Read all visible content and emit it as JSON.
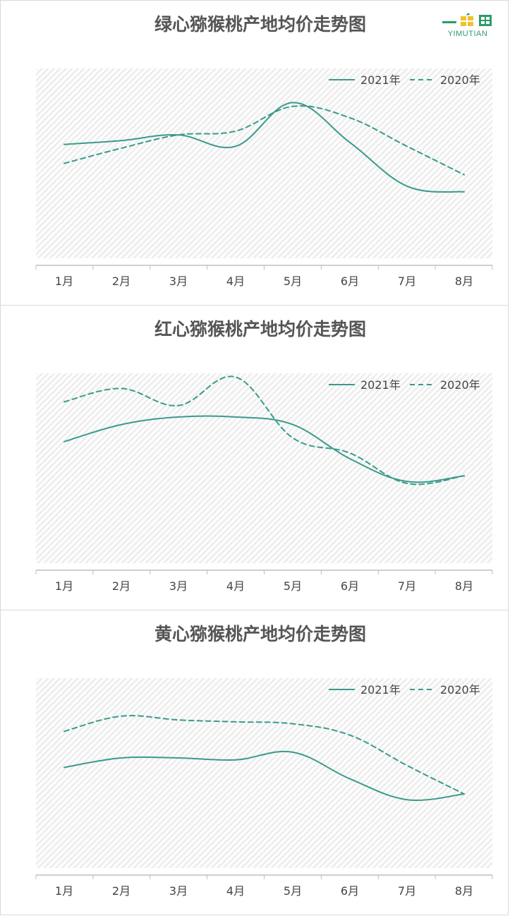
{
  "logo": {
    "text": "YIMUTIAN",
    "colors": {
      "green": "#2e9b6a",
      "yellow": "#f2c12e"
    }
  },
  "colors": {
    "line": "#3a9a8c",
    "axis": "#bfbfbf",
    "hatch": "#eeeeee",
    "title": "#555555",
    "tick": "#444444"
  },
  "chart_data": [
    {
      "type": "line",
      "title": "绿心猕猴桃产地均价走势图",
      "categories": [
        "1月",
        "2月",
        "3月",
        "4月",
        "5月",
        "6月",
        "7月",
        "8月"
      ],
      "ylim": [
        0,
        10
      ],
      "legend": "top-right",
      "series": [
        {
          "name": "2021年",
          "style": "solid",
          "values": [
            6.0,
            6.2,
            6.5,
            5.9,
            8.2,
            6.1,
            3.8,
            3.5
          ]
        },
        {
          "name": "2020年",
          "style": "dashed",
          "values": [
            5.0,
            5.8,
            6.5,
            6.7,
            8.0,
            7.4,
            5.9,
            4.4
          ]
        }
      ]
    },
    {
      "type": "line",
      "title": "红心猕猴桃产地均价走势图",
      "categories": [
        "1月",
        "2月",
        "3月",
        "4月",
        "5月",
        "6月",
        "7月",
        "8月"
      ],
      "ylim": [
        0,
        10
      ],
      "legend": "top-right",
      "series": [
        {
          "name": "2021年",
          "style": "solid",
          "values": [
            6.4,
            7.3,
            7.7,
            7.7,
            7.3,
            5.5,
            4.3,
            4.6
          ]
        },
        {
          "name": "2020年",
          "style": "dashed",
          "values": [
            8.5,
            9.2,
            8.3,
            9.8,
            6.6,
            5.8,
            4.2,
            4.6
          ]
        }
      ]
    },
    {
      "type": "line",
      "title": "黄心猕猴桃产地均价走势图",
      "categories": [
        "1月",
        "2月",
        "3月",
        "4月",
        "5月",
        "6月",
        "7月",
        "8月"
      ],
      "ylim": [
        0,
        10
      ],
      "legend": "top-right",
      "series": [
        {
          "name": "2021年",
          "style": "solid",
          "values": [
            5.3,
            5.8,
            5.8,
            5.7,
            6.1,
            4.7,
            3.6,
            3.9
          ]
        },
        {
          "name": "2020年",
          "style": "dashed",
          "values": [
            7.2,
            8.0,
            7.8,
            7.7,
            7.6,
            7.0,
            5.4,
            3.9
          ]
        }
      ]
    }
  ]
}
